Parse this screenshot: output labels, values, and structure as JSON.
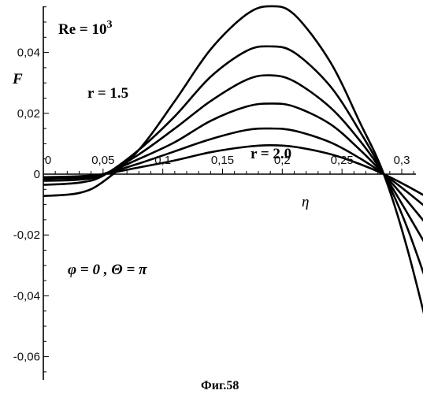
{
  "chart_data": {
    "type": "line",
    "title": "",
    "xlabel": "η",
    "ylabel": "F",
    "xlim": [
      0,
      0.33
    ],
    "ylim": [
      -0.067,
      0.058
    ],
    "x_ticks": [
      {
        "value": 0,
        "label": "0"
      },
      {
        "value": 0.05,
        "label": "0,05"
      },
      {
        "value": 0.1,
        "label": "0,1"
      },
      {
        "value": 0.15,
        "label": "0,15"
      },
      {
        "value": 0.2,
        "label": "0,2"
      },
      {
        "value": 0.25,
        "label": "0,25"
      },
      {
        "value": 0.3,
        "label": "0,3"
      }
    ],
    "y_ticks": [
      {
        "value": 0.04,
        "label": "0,04"
      },
      {
        "value": 0.02,
        "label": "0,02"
      },
      {
        "value": 0,
        "label": "0"
      },
      {
        "value": -0.02,
        "label": "-0,02"
      },
      {
        "value": -0.04,
        "label": "-0,04"
      },
      {
        "value": -0.06,
        "label": "-0,06"
      }
    ],
    "series": [
      {
        "points": [
          [
            0,
            -0.0072
          ],
          [
            0.03,
            -0.0062
          ],
          [
            0.05,
            -0.0025
          ],
          [
            0.08,
            0.008
          ],
          [
            0.11,
            0.024
          ],
          [
            0.14,
            0.041
          ],
          [
            0.17,
            0.0525
          ],
          [
            0.19,
            0.0552
          ],
          [
            0.21,
            0.0525
          ],
          [
            0.24,
            0.037
          ],
          [
            0.265,
            0.017
          ],
          [
            0.285,
            0.0
          ],
          [
            0.305,
            -0.025
          ],
          [
            0.33,
            -0.064
          ]
        ]
      },
      {
        "points": [
          [
            0,
            -0.0035
          ],
          [
            0.03,
            -0.0028
          ],
          [
            0.05,
            -0.0005
          ],
          [
            0.08,
            0.008
          ],
          [
            0.11,
            0.019
          ],
          [
            0.14,
            0.032
          ],
          [
            0.17,
            0.0405
          ],
          [
            0.19,
            0.042
          ],
          [
            0.21,
            0.04
          ],
          [
            0.24,
            0.029
          ],
          [
            0.265,
            0.014
          ],
          [
            0.285,
            0.0
          ],
          [
            0.305,
            -0.018
          ],
          [
            0.33,
            -0.046
          ]
        ]
      },
      {
        "points": [
          [
            0,
            -0.0022
          ],
          [
            0.03,
            -0.0018
          ],
          [
            0.05,
            -0.0002
          ],
          [
            0.08,
            0.0065
          ],
          [
            0.11,
            0.015
          ],
          [
            0.14,
            0.024
          ],
          [
            0.17,
            0.031
          ],
          [
            0.19,
            0.0325
          ],
          [
            0.21,
            0.0305
          ],
          [
            0.24,
            0.022
          ],
          [
            0.265,
            0.011
          ],
          [
            0.285,
            0.0
          ],
          [
            0.305,
            -0.013
          ],
          [
            0.33,
            -0.03
          ]
        ]
      },
      {
        "points": [
          [
            0,
            -0.0015
          ],
          [
            0.03,
            -0.0012
          ],
          [
            0.05,
            0.0
          ],
          [
            0.08,
            0.005
          ],
          [
            0.11,
            0.0105
          ],
          [
            0.14,
            0.0175
          ],
          [
            0.17,
            0.0222
          ],
          [
            0.19,
            0.0232
          ],
          [
            0.21,
            0.0222
          ],
          [
            0.24,
            0.0165
          ],
          [
            0.265,
            0.008
          ],
          [
            0.285,
            0.0
          ],
          [
            0.305,
            -0.009
          ],
          [
            0.33,
            -0.021
          ]
        ]
      },
      {
        "points": [
          [
            0,
            -0.0012
          ],
          [
            0.03,
            -0.0009
          ],
          [
            0.05,
            0.0
          ],
          [
            0.08,
            0.0035
          ],
          [
            0.11,
            0.0075
          ],
          [
            0.14,
            0.0115
          ],
          [
            0.17,
            0.0145
          ],
          [
            0.19,
            0.015
          ],
          [
            0.21,
            0.0143
          ],
          [
            0.24,
            0.0105
          ],
          [
            0.265,
            0.0052
          ],
          [
            0.285,
            0.0
          ],
          [
            0.305,
            -0.006
          ],
          [
            0.33,
            -0.014
          ]
        ]
      },
      {
        "points": [
          [
            0,
            -0.001
          ],
          [
            0.03,
            -0.0007
          ],
          [
            0.05,
            0.0
          ],
          [
            0.08,
            0.0022
          ],
          [
            0.11,
            0.0045
          ],
          [
            0.14,
            0.0072
          ],
          [
            0.17,
            0.009
          ],
          [
            0.19,
            0.0095
          ],
          [
            0.21,
            0.009
          ],
          [
            0.24,
            0.0066
          ],
          [
            0.265,
            0.0033
          ],
          [
            0.285,
            0.0
          ],
          [
            0.305,
            -0.004
          ],
          [
            0.33,
            -0.0095
          ]
        ]
      }
    ],
    "annotations": {
      "re_base": "Re = 10",
      "re_exp": "3",
      "ylabel_text": "F",
      "r_top": "r = 1.5",
      "r_bottom": "r = 2.0",
      "phi_text": "φ = 0 , Θ = π",
      "xlabel_text": "η",
      "caption": "Фиг.58"
    }
  }
}
